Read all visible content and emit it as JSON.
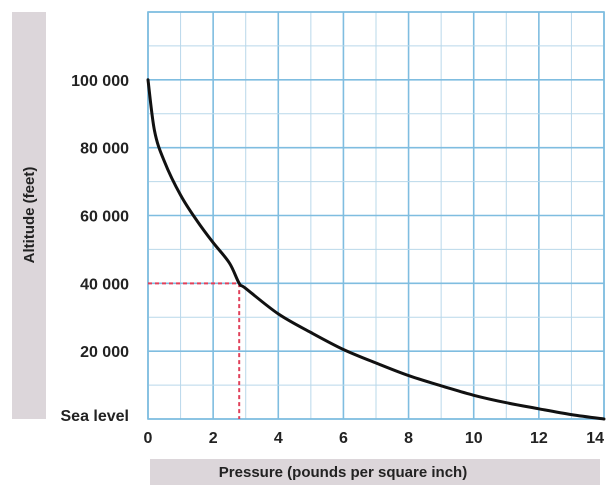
{
  "chart_data": {
    "type": "line",
    "title": "",
    "xlabel": "Pressure (pounds per square inch)",
    "ylabel": "Altitude (feet)",
    "xlim": [
      0,
      14
    ],
    "ylim": [
      0,
      120000
    ],
    "x_ticks": [
      {
        "value": 0,
        "label": "0"
      },
      {
        "value": 2,
        "label": "2"
      },
      {
        "value": 4,
        "label": "4"
      },
      {
        "value": 6,
        "label": "6"
      },
      {
        "value": 8,
        "label": "8"
      },
      {
        "value": 10,
        "label": "10"
      },
      {
        "value": 12,
        "label": "12"
      },
      {
        "value": 14,
        "label": "14"
      }
    ],
    "y_ticks": [
      {
        "value": 0,
        "label": "Sea level"
      },
      {
        "value": 20000,
        "label": "20 000"
      },
      {
        "value": 40000,
        "label": "40 000"
      },
      {
        "value": 60000,
        "label": "60 000"
      },
      {
        "value": 80000,
        "label": "80 000"
      },
      {
        "value": 100000,
        "label": "100 000"
      }
    ],
    "grid": true,
    "series": [
      {
        "x": [
          0,
          0.2,
          0.5,
          1,
          1.5,
          2,
          2.5,
          2.8,
          3,
          4,
          5,
          6,
          7,
          8,
          9,
          10,
          11,
          12,
          13,
          14
        ],
        "y": [
          100000,
          85000,
          76000,
          66000,
          58500,
          52000,
          46000,
          40000,
          38500,
          31000,
          25500,
          20500,
          16500,
          12800,
          9800,
          7000,
          4800,
          3000,
          1300,
          0
        ]
      }
    ],
    "annotations": [
      {
        "type": "reference-lines",
        "x": 2.8,
        "y": 40000
      }
    ],
    "colors": {
      "curve": "#111111",
      "reference": "#e0405a",
      "grid": "#7fbde0",
      "label_band": "#dcd6da"
    }
  }
}
